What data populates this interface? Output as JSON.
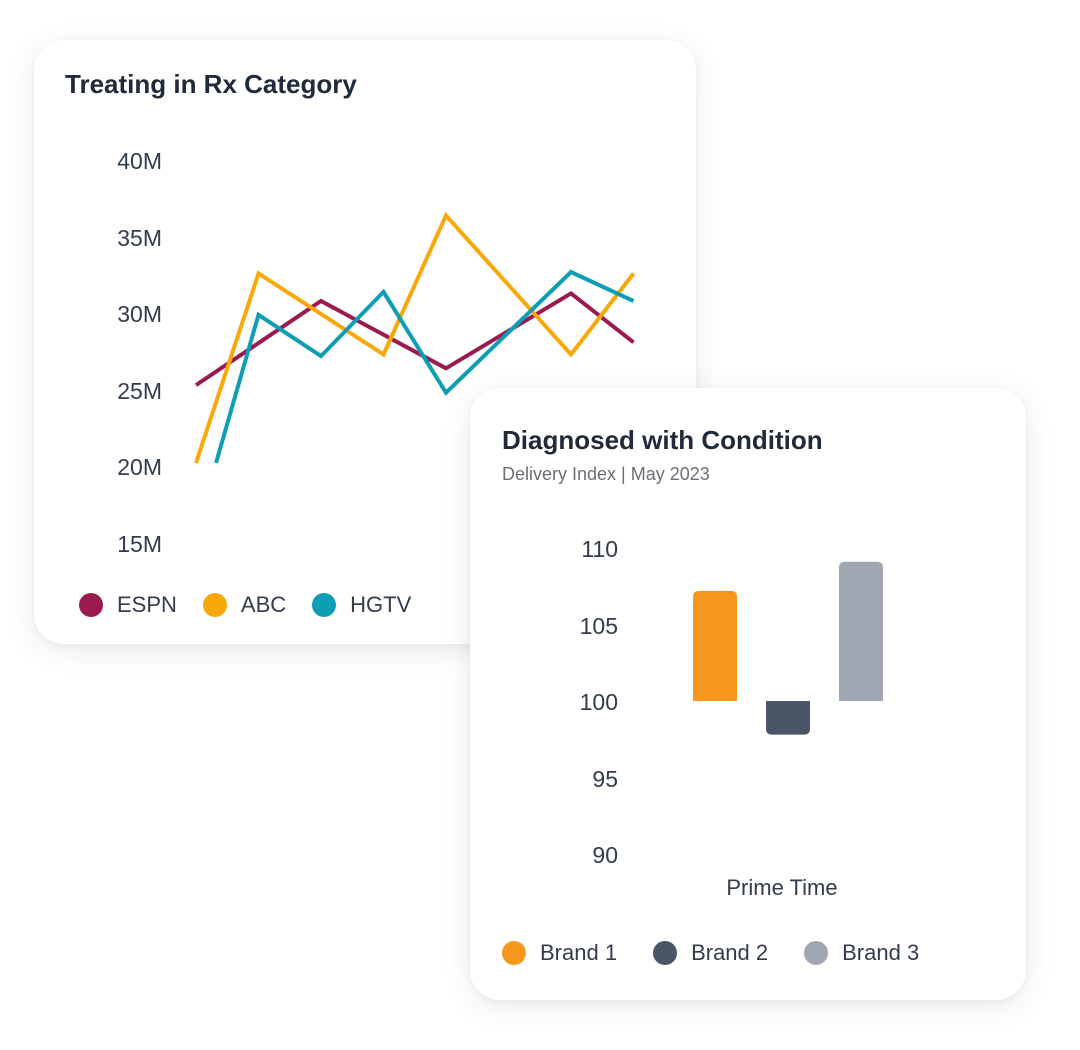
{
  "chart_data": [
    {
      "type": "line",
      "title": "Treating in Rx Category",
      "xlabel": "",
      "ylabel": "",
      "x": [
        1,
        2,
        3,
        4,
        5,
        6,
        7,
        8
      ],
      "yticks": [
        "40M",
        "35M",
        "30M",
        "25M",
        "20M",
        "15M"
      ],
      "ylim": [
        15000000,
        40000000
      ],
      "grid": false,
      "legend_position": "bottom",
      "series": [
        {
          "name": "ESPN",
          "color": "#9b1a4f",
          "values": [
            25400000,
            null,
            30900000,
            null,
            26500000,
            null,
            31400000,
            28200000
          ]
        },
        {
          "name": "ABC",
          "color": "#f9a80a",
          "values": [
            20300000,
            32700000,
            null,
            27400000,
            36500000,
            null,
            27400000,
            32700000
          ]
        },
        {
          "name": "HGTV",
          "color": "#0d9db5",
          "values": [
            20300000,
            30000000,
            27300000,
            31500000,
            24900000,
            null,
            32800000,
            30900000
          ]
        }
      ]
    },
    {
      "type": "bar",
      "title": "Diagnosed with Condition",
      "subtitle": "Delivery Index | May 2023",
      "categories": [
        "Prime Time"
      ],
      "xlabel": "",
      "ylabel": "",
      "yticks": [
        "110",
        "105",
        "100",
        "95",
        "90"
      ],
      "ylim": [
        90,
        110
      ],
      "baseline": 100,
      "grid": false,
      "legend_position": "bottom",
      "series": [
        {
          "name": "Brand 1",
          "color": "#f6981e",
          "values": [
            107.2
          ]
        },
        {
          "name": "Brand 2",
          "color": "#4a5568",
          "values": [
            97.8
          ]
        },
        {
          "name": "Brand 3",
          "color": "#a0a6b2",
          "values": [
            109.1
          ]
        }
      ]
    }
  ]
}
